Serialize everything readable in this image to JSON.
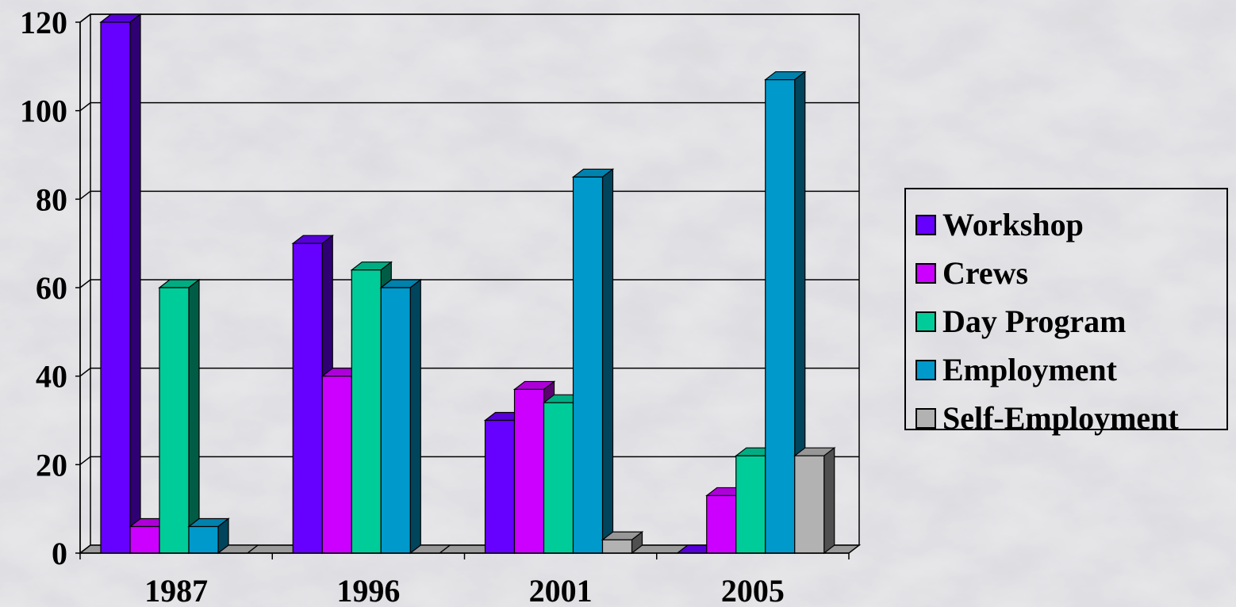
{
  "colors": {
    "workshop": "#6600ff",
    "crews": "#cc00ff",
    "day_program": "#00cc99",
    "employment": "#0099cc",
    "self_employment": "#b2b2b2"
  },
  "chart_data": {
    "type": "bar",
    "categories": [
      "1987",
      "1996",
      "2001",
      "2005"
    ],
    "series": [
      {
        "name": "Workshop",
        "values": [
          120,
          70,
          30,
          0
        ]
      },
      {
        "name": "Crews",
        "values": [
          6,
          40,
          37,
          13
        ]
      },
      {
        "name": "Day Program",
        "values": [
          60,
          64,
          34,
          22
        ]
      },
      {
        "name": "Employment",
        "values": [
          6,
          60,
          85,
          107
        ]
      },
      {
        "name": "Self-Employment",
        "values": [
          0,
          0,
          3,
          22
        ]
      }
    ],
    "title": "",
    "xlabel": "",
    "ylabel": "",
    "ylim": [
      0,
      120
    ],
    "yticks": [
      "0",
      "20",
      "40",
      "60",
      "80",
      "100",
      "120"
    ],
    "grid": true,
    "legend_position": "right",
    "style": "3d-clustered-column"
  }
}
